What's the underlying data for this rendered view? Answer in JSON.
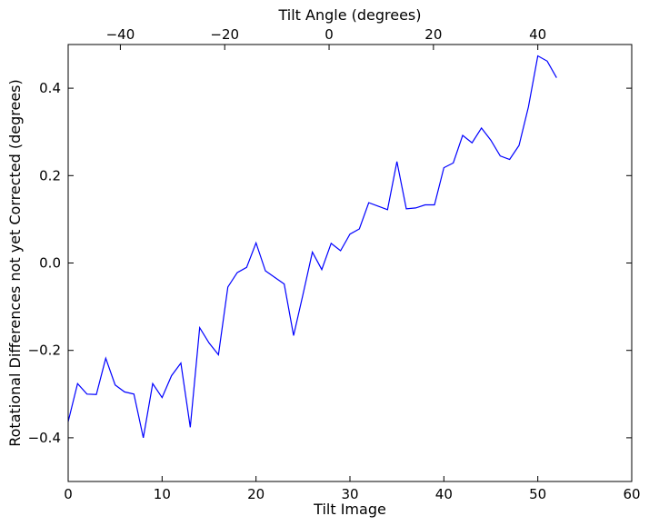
{
  "chart_data": {
    "type": "line",
    "xlabel": "Tilt Image",
    "x2label": "Tilt Angle (degrees)",
    "ylabel": "Rotational Differences not yet Corrected (degrees)",
    "xlim": [
      0,
      60
    ],
    "ylim": [
      -0.5,
      0.5
    ],
    "x2lim": [
      -50,
      58
    ],
    "xticks": [
      0,
      10,
      20,
      30,
      40,
      50,
      60
    ],
    "xtick_labels": [
      "0",
      "10",
      "20",
      "30",
      "40",
      "50",
      "60"
    ],
    "yticks": [
      -0.4,
      -0.2,
      0.0,
      0.2,
      0.4
    ],
    "ytick_labels": [
      "−0.4",
      "−0.2",
      "0.0",
      "0.2",
      "0.4"
    ],
    "x2ticks": [
      -40,
      -20,
      0,
      20,
      40
    ],
    "x2tick_labels": [
      "−40",
      "−20",
      "0",
      "20",
      "40"
    ],
    "grid": false,
    "line_color": "#0000ff",
    "series": [
      {
        "x": [
          0,
          1,
          2,
          3,
          4,
          5,
          6,
          7,
          8,
          9,
          10,
          11,
          12,
          13,
          14,
          15,
          16,
          17,
          18,
          19,
          20,
          21,
          22,
          23,
          24,
          25,
          26,
          27,
          28,
          29,
          30,
          31,
          32,
          33,
          34,
          35,
          36,
          37,
          38,
          39,
          40,
          41,
          42,
          43,
          44,
          45,
          46,
          47,
          48,
          49,
          50,
          51,
          52
        ],
        "values": [
          -0.363,
          -0.276,
          -0.3,
          -0.301,
          -0.218,
          -0.279,
          -0.295,
          -0.3,
          -0.4,
          -0.276,
          -0.308,
          -0.258,
          -0.229,
          -0.376,
          -0.148,
          -0.183,
          -0.21,
          -0.055,
          -0.022,
          -0.01,
          0.046,
          -0.018,
          -0.033,
          -0.048,
          -0.166,
          -0.072,
          0.025,
          -0.015,
          0.045,
          0.028,
          0.066,
          0.078,
          0.138,
          0.13,
          0.122,
          0.232,
          0.124,
          0.126,
          0.133,
          0.133,
          0.218,
          0.229,
          0.292,
          0.275,
          0.309,
          0.281,
          0.245,
          0.237,
          0.269,
          0.357,
          0.474,
          0.462,
          0.424
        ]
      }
    ]
  }
}
